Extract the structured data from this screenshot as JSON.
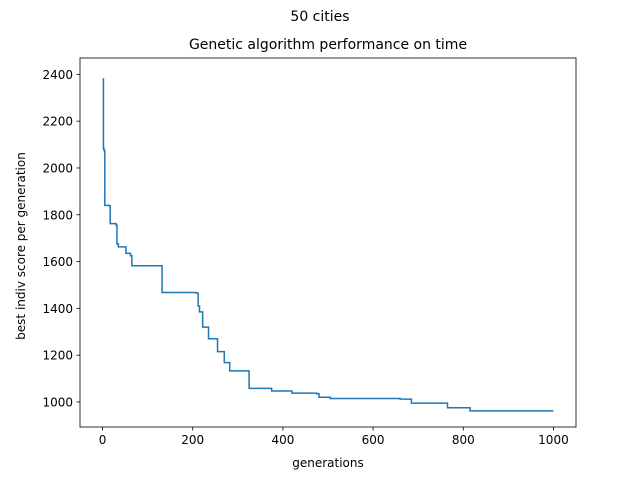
{
  "chart_data": {
    "type": "line",
    "suptitle": "50 cities",
    "title": "Genetic algorithm performance on time",
    "xlabel": "generations",
    "ylabel": "best indiv score per generation",
    "xlim": [
      -50,
      1050
    ],
    "ylim": [
      893,
      2470
    ],
    "xticks": [
      0,
      200,
      400,
      600,
      800,
      1000
    ],
    "yticks": [
      1000,
      1200,
      1400,
      1600,
      1800,
      2000,
      2200,
      2400
    ],
    "grid": false,
    "line_color": "#1f77b4",
    "series": [
      {
        "step": true,
        "points": [
          [
            0,
            2380
          ],
          [
            2,
            2085
          ],
          [
            3,
            2075
          ],
          [
            5,
            1840
          ],
          [
            15,
            1838
          ],
          [
            17,
            1762
          ],
          [
            30,
            1755
          ],
          [
            32,
            1675
          ],
          [
            35,
            1663
          ],
          [
            52,
            1635
          ],
          [
            62,
            1625
          ],
          [
            65,
            1582
          ],
          [
            132,
            1468
          ],
          [
            208,
            1465
          ],
          [
            212,
            1410
          ],
          [
            215,
            1385
          ],
          [
            222,
            1320
          ],
          [
            235,
            1270
          ],
          [
            255,
            1215
          ],
          [
            270,
            1168
          ],
          [
            282,
            1133
          ],
          [
            325,
            1058
          ],
          [
            375,
            1047
          ],
          [
            420,
            1038
          ],
          [
            475,
            1035
          ],
          [
            480,
            1020
          ],
          [
            505,
            1015
          ],
          [
            660,
            1012
          ],
          [
            685,
            995
          ],
          [
            765,
            975
          ],
          [
            815,
            962
          ],
          [
            1000,
            962
          ]
        ]
      }
    ]
  }
}
